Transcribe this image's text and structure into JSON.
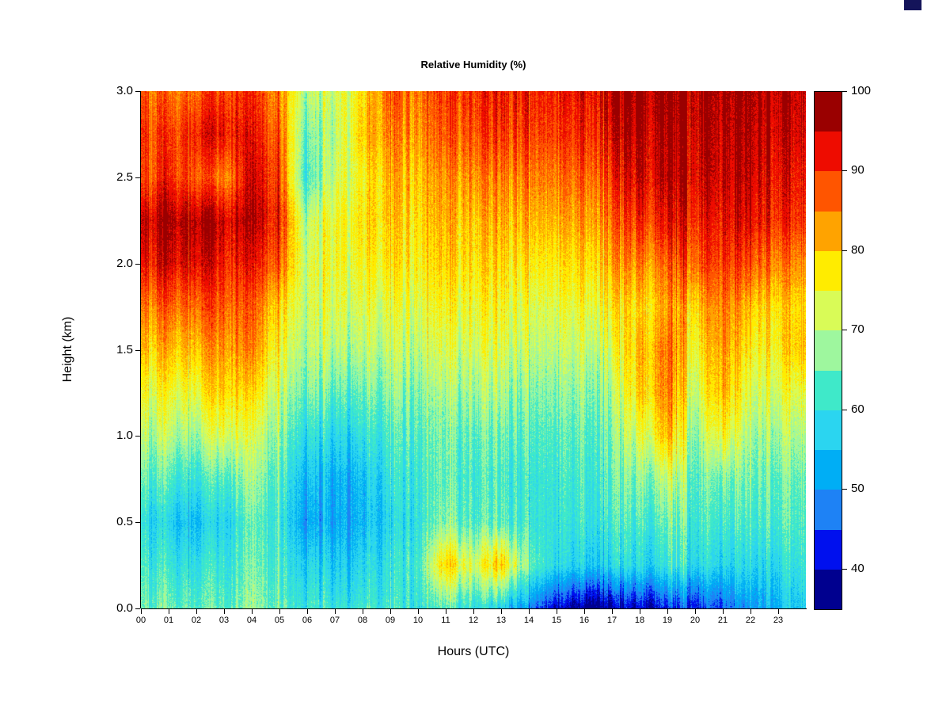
{
  "chart_data": {
    "type": "heatmap",
    "title": "Relative Humidity (%)",
    "xlabel": "Hours (UTC)",
    "ylabel": "Height (km)",
    "x_tick_labels": [
      "00",
      "01",
      "02",
      "03",
      "04",
      "05",
      "06",
      "07",
      "08",
      "09",
      "10",
      "11",
      "12",
      "13",
      "14",
      "15",
      "16",
      "17",
      "18",
      "19",
      "20",
      "21",
      "22",
      "23"
    ],
    "y_tick_labels": [
      "0.0",
      "0.5",
      "1.0",
      "1.5",
      "2.0",
      "2.5",
      "3.0"
    ],
    "xlim": [
      0,
      24
    ],
    "ylim": [
      0,
      3
    ],
    "zlim": [
      35,
      100
    ],
    "x_hours": [
      0,
      1,
      2,
      3,
      4,
      5,
      6,
      7,
      8,
      9,
      10,
      11,
      12,
      13,
      14,
      15,
      16,
      17,
      18,
      19,
      20,
      21,
      22,
      23,
      24
    ],
    "heights_km": [
      0,
      0.25,
      0.5,
      0.75,
      1,
      1.25,
      1.5,
      1.75,
      2,
      2.25,
      2.5,
      2.75,
      3
    ],
    "levels": [
      35,
      40,
      45,
      50,
      55,
      60,
      65,
      70,
      75,
      80,
      85,
      90,
      95,
      100
    ],
    "colors": [
      "#00008F",
      "#0010EE",
      "#1E82F5",
      "#00AEF5",
      "#2BD5F0",
      "#3FE9C9",
      "#9EF79E",
      "#D9FB57",
      "#FFEC00",
      "#FFA300",
      "#FF5500",
      "#EE0C00",
      "#9A0000"
    ],
    "colorbar_ticks": [
      "40",
      "50",
      "60",
      "70",
      "80",
      "90",
      "100"
    ],
    "values": [
      [
        65,
        64,
        64,
        64,
        65,
        65,
        62,
        60,
        62,
        62,
        60,
        62,
        60,
        58,
        50,
        42,
        38,
        38,
        40,
        42,
        44,
        46,
        50,
        55,
        58
      ],
      [
        63,
        60,
        60,
        61,
        63,
        63,
        58,
        56,
        58,
        60,
        62,
        78,
        72,
        80,
        66,
        60,
        58,
        58,
        58,
        60,
        60,
        58,
        58,
        60,
        62
      ],
      [
        60,
        56,
        55,
        58,
        62,
        62,
        52,
        52,
        54,
        58,
        60,
        65,
        63,
        64,
        62,
        62,
        62,
        62,
        62,
        64,
        63,
        62,
        62,
        64,
        64
      ],
      [
        65,
        62,
        61,
        64,
        66,
        64,
        55,
        53,
        55,
        60,
        61,
        63,
        62,
        63,
        62,
        63,
        63,
        64,
        66,
        70,
        65,
        66,
        65,
        66,
        66
      ],
      [
        70,
        69,
        68,
        74,
        70,
        68,
        60,
        58,
        60,
        63,
        63,
        64,
        64,
        65,
        64,
        65,
        65,
        66,
        72,
        80,
        68,
        76,
        68,
        70,
        70
      ],
      [
        75,
        74,
        75,
        80,
        76,
        72,
        66,
        64,
        65,
        67,
        66,
        67,
        68,
        69,
        67,
        68,
        68,
        69,
        78,
        84,
        72,
        82,
        72,
        74,
        75
      ],
      [
        80,
        80,
        81,
        84,
        82,
        76,
        70,
        70,
        70,
        71,
        70,
        71,
        72,
        73,
        71,
        72,
        72,
        73,
        80,
        85,
        76,
        84,
        76,
        78,
        82
      ],
      [
        85,
        86,
        87,
        88,
        85,
        80,
        72,
        73,
        73,
        74,
        73,
        74,
        75,
        76,
        74,
        75,
        76,
        77,
        78,
        82,
        80,
        86,
        80,
        80,
        80
      ],
      [
        92,
        93,
        94,
        92,
        90,
        88,
        72,
        75,
        76,
        78,
        76,
        78,
        78,
        79,
        78,
        79,
        80,
        82,
        84,
        86,
        88,
        90,
        88,
        86,
        85
      ],
      [
        95,
        96,
        97,
        95,
        94,
        92,
        70,
        75,
        78,
        80,
        78,
        80,
        80,
        82,
        82,
        83,
        84,
        86,
        90,
        92,
        92,
        93,
        93,
        92,
        91
      ],
      [
        88,
        90,
        88,
        85,
        92,
        90,
        62,
        72,
        76,
        82,
        80,
        82,
        84,
        85,
        86,
        87,
        88,
        90,
        94,
        95,
        95,
        95,
        95,
        94,
        93
      ],
      [
        90,
        88,
        92,
        93,
        90,
        88,
        65,
        70,
        80,
        85,
        83,
        86,
        88,
        90,
        90,
        91,
        92,
        94,
        96,
        96,
        96,
        96,
        96,
        96,
        95
      ],
      [
        88,
        85,
        87,
        90,
        88,
        85,
        70,
        72,
        78,
        88,
        85,
        88,
        90,
        92,
        92,
        93,
        94,
        96,
        97,
        97,
        97,
        97,
        97,
        97,
        96
      ]
    ]
  }
}
